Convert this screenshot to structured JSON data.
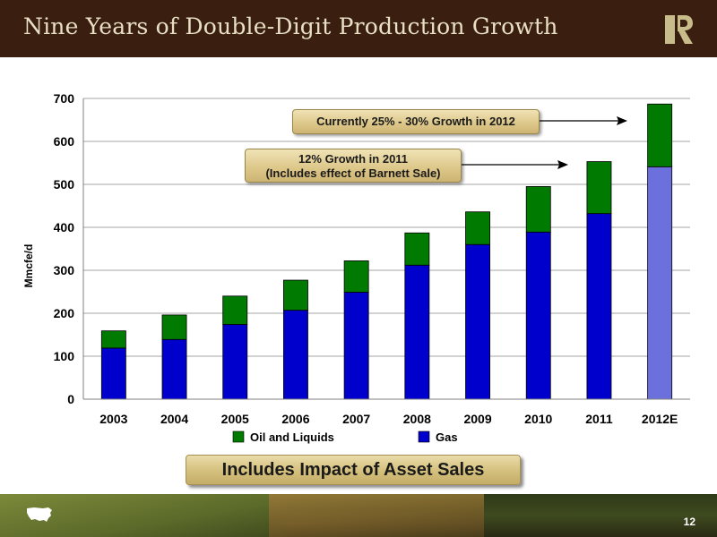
{
  "header": {
    "title": "Nine Years of Double-Digit Production Growth"
  },
  "chart_data": {
    "type": "bar",
    "stacked": true,
    "categories": [
      "2003",
      "2004",
      "2005",
      "2006",
      "2007",
      "2008",
      "2009",
      "2010",
      "2011",
      "2012E"
    ],
    "series": [
      {
        "name": "Gas",
        "values": [
          119,
          139,
          174,
          207,
          249,
          312,
          360,
          389,
          432,
          541
        ],
        "color": "#0000cc"
      },
      {
        "name": "Oil and Liquids",
        "values": [
          40,
          57,
          66,
          70,
          73,
          75,
          76,
          106,
          121,
          146
        ],
        "color": "#007a00"
      }
    ],
    "highlight": {
      "category": "2012E",
      "colors": {
        "Gas": "#6b70dd"
      }
    },
    "ylabel": "Mmcfe/d",
    "ylim": [
      0,
      700
    ],
    "yticks": [
      0,
      100,
      200,
      300,
      400,
      500,
      600,
      700
    ],
    "grid": true,
    "legend": {
      "position": "bottom",
      "order": [
        "Oil and Liquids",
        "Gas"
      ]
    }
  },
  "callouts": {
    "growth_2012": "Currently 25% - 30%  Growth in 2012",
    "growth_2011_line1": "12% Growth in 2011",
    "growth_2011_line2": "(Includes effect of Barnett Sale)"
  },
  "banner": {
    "text": "Includes Impact of Asset Sales"
  },
  "footer": {
    "page_number": "12"
  }
}
